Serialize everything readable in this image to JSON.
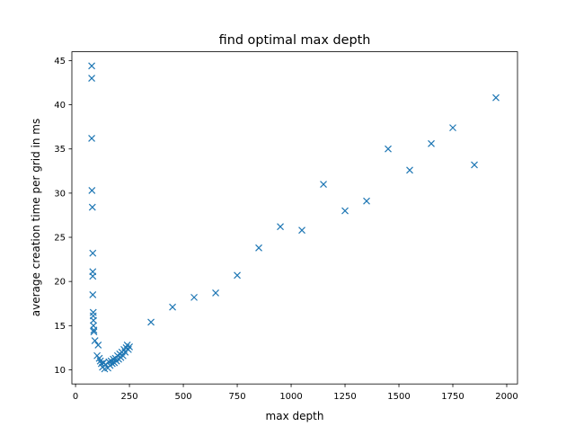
{
  "chart_data": {
    "type": "scatter",
    "title": "find optimal max depth",
    "xlabel": "max depth",
    "ylabel": "average creation time per grid in ms",
    "xlim": [
      -17,
      2050
    ],
    "ylim": [
      8.4,
      46.0
    ],
    "xticks": [
      0,
      250,
      500,
      750,
      1000,
      1250,
      1500,
      1750,
      2000
    ],
    "yticks": [
      10,
      15,
      20,
      25,
      30,
      35,
      40,
      45
    ],
    "marker": "x",
    "color": "#1f77b4",
    "grid": false,
    "points": [
      [
        75,
        44.4
      ],
      [
        75,
        43.0
      ],
      [
        75,
        36.2
      ],
      [
        76,
        30.3
      ],
      [
        78,
        28.4
      ],
      [
        80,
        23.2
      ],
      [
        80,
        21.1
      ],
      [
        80,
        20.6
      ],
      [
        80,
        18.5
      ],
      [
        82,
        16.5
      ],
      [
        82,
        16.1
      ],
      [
        83,
        15.6
      ],
      [
        83,
        15.0
      ],
      [
        85,
        14.5
      ],
      [
        85,
        14.3
      ],
      [
        90,
        13.3
      ],
      [
        105,
        12.8
      ],
      [
        100,
        11.6
      ],
      [
        110,
        11.3
      ],
      [
        115,
        11.0
      ],
      [
        120,
        10.7
      ],
      [
        125,
        10.3
      ],
      [
        130,
        10.8
      ],
      [
        135,
        10.1
      ],
      [
        140,
        10.6
      ],
      [
        150,
        10.2
      ],
      [
        155,
        10.9
      ],
      [
        160,
        10.5
      ],
      [
        165,
        11.0
      ],
      [
        170,
        10.7
      ],
      [
        175,
        11.2
      ],
      [
        180,
        10.8
      ],
      [
        185,
        11.3
      ],
      [
        190,
        11.0
      ],
      [
        195,
        11.6
      ],
      [
        200,
        11.2
      ],
      [
        205,
        11.8
      ],
      [
        210,
        11.4
      ],
      [
        215,
        12.0
      ],
      [
        220,
        11.6
      ],
      [
        225,
        12.3
      ],
      [
        230,
        12.0
      ],
      [
        235,
        12.5
      ],
      [
        240,
        12.8
      ],
      [
        245,
        12.3
      ],
      [
        250,
        12.6
      ],
      [
        350,
        15.4
      ],
      [
        450,
        17.1
      ],
      [
        550,
        18.2
      ],
      [
        650,
        18.7
      ],
      [
        750,
        20.7
      ],
      [
        850,
        23.8
      ],
      [
        950,
        26.2
      ],
      [
        1050,
        25.8
      ],
      [
        1150,
        31.0
      ],
      [
        1250,
        28.0
      ],
      [
        1350,
        29.1
      ],
      [
        1450,
        35.0
      ],
      [
        1550,
        32.6
      ],
      [
        1650,
        35.6
      ],
      [
        1750,
        37.4
      ],
      [
        1850,
        33.2
      ],
      [
        1950,
        40.8
      ]
    ]
  }
}
